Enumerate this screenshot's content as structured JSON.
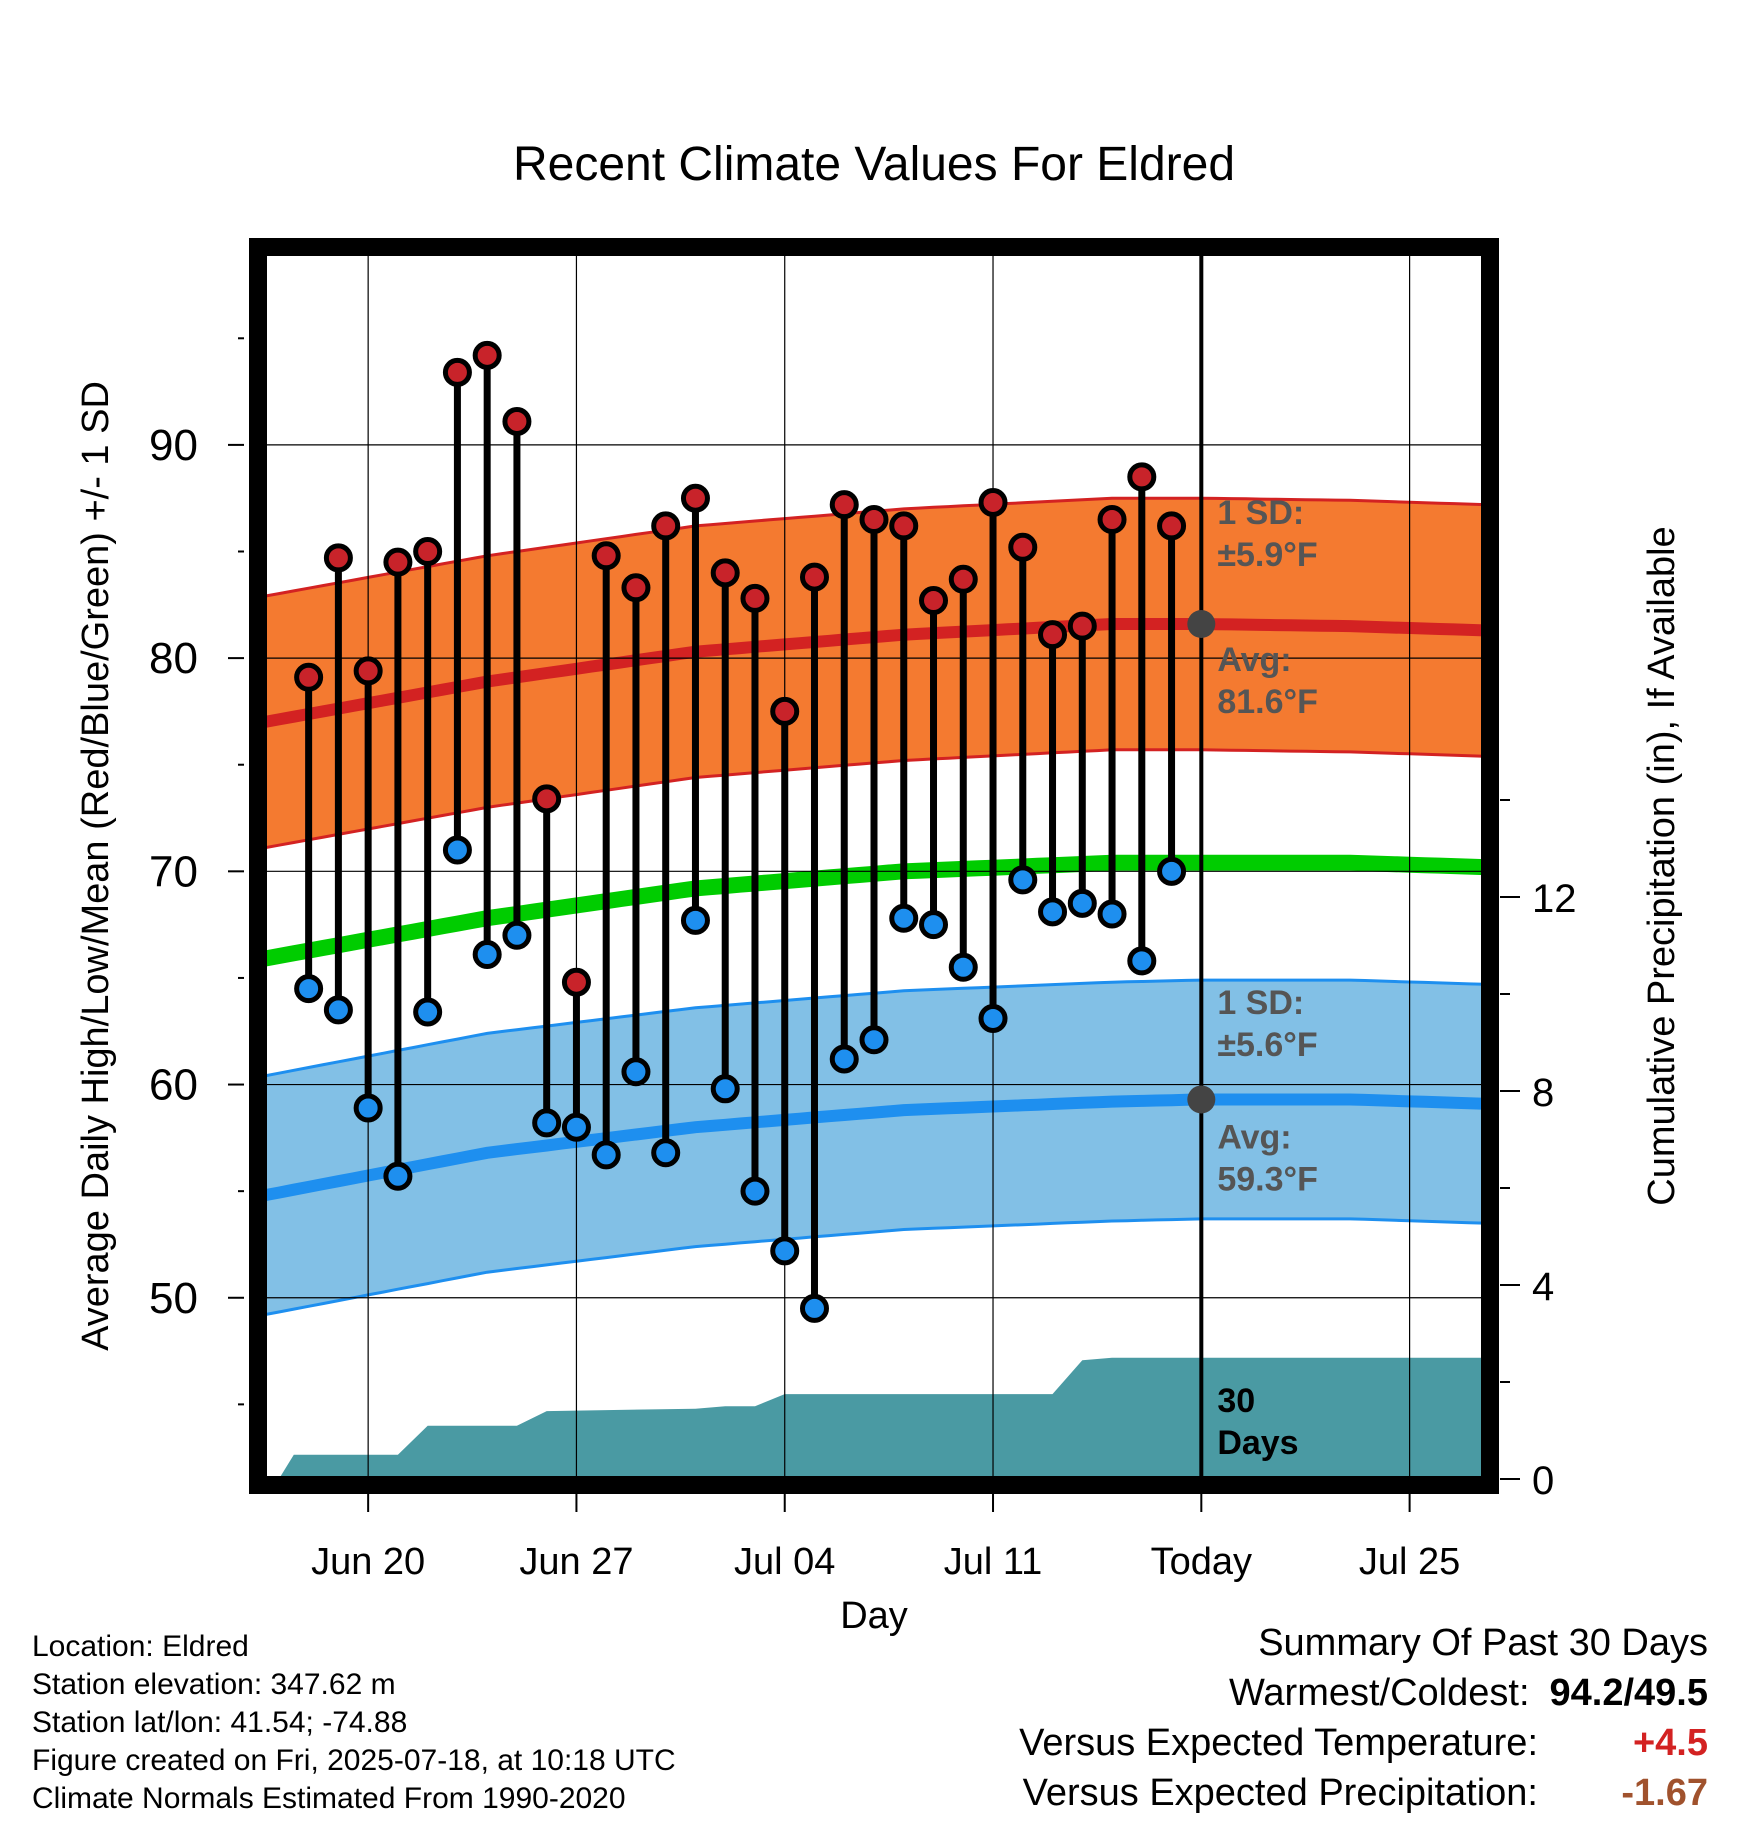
{
  "chart_data": {
    "type": "line",
    "title": "Recent Climate Values For Eldred",
    "xlabel": "Day",
    "ylabel": "Average Daily High/Low/Mean (Red/Blue/Green) +/- 1 SD",
    "y2label": "Cumulative Precipitation (in), If Available",
    "x_tick_labels": [
      "Jun 20",
      "Jun 27",
      "Jul 04",
      "Jul 11",
      "Today",
      "Jul 25"
    ],
    "x_tick_days": [
      -28,
      -21,
      -14,
      -7,
      0,
      7
    ],
    "x_range_days": [
      -31.5,
      9.5
    ],
    "ylim": [
      41.5,
      99
    ],
    "y_ticks": [
      50,
      60,
      70,
      80,
      90
    ],
    "y2_ticks": [
      0,
      4,
      8,
      12
    ],
    "grid": true,
    "days": [
      -30,
      -29,
      -28,
      -27,
      -26,
      -25,
      -24,
      -23,
      -22,
      -21,
      -20,
      -19,
      -18,
      -17,
      -16,
      -15,
      -14,
      -13,
      -12,
      -11,
      -10,
      -9,
      -8,
      -7,
      -6,
      -5,
      -4,
      -3,
      -2,
      -1
    ],
    "daily_high": [
      79.1,
      84.7,
      79.4,
      84.5,
      85.0,
      93.4,
      94.2,
      91.1,
      73.4,
      64.8,
      84.8,
      83.3,
      86.2,
      87.5,
      84.0,
      82.8,
      77.5,
      83.8,
      87.2,
      86.5,
      86.2,
      82.7,
      83.7,
      87.3,
      85.2,
      81.1,
      81.5,
      86.5,
      88.5,
      86.2
    ],
    "daily_low": [
      64.5,
      63.5,
      58.9,
      55.7,
      63.4,
      71.0,
      66.1,
      67.0,
      58.2,
      58.0,
      56.7,
      60.6,
      56.8,
      67.7,
      59.8,
      55.0,
      52.2,
      49.5,
      61.2,
      62.1,
      67.8,
      67.5,
      65.5,
      63.1,
      69.6,
      68.1,
      68.5,
      68.0,
      65.8,
      70.0
    ],
    "normal_high_avg": [
      {
        "day": -31.5,
        "value": 77.0
      },
      {
        "day": -24,
        "value": 78.9
      },
      {
        "day": -17,
        "value": 80.3
      },
      {
        "day": -10,
        "value": 81.1
      },
      {
        "day": -3,
        "value": 81.6
      },
      {
        "day": 0,
        "value": 81.6
      },
      {
        "day": 5,
        "value": 81.5
      },
      {
        "day": 9.5,
        "value": 81.3
      }
    ],
    "normal_high_sd": 5.9,
    "normal_low_avg": [
      {
        "day": -31.5,
        "value": 54.8
      },
      {
        "day": -24,
        "value": 56.8
      },
      {
        "day": -17,
        "value": 58.0
      },
      {
        "day": -10,
        "value": 58.8
      },
      {
        "day": -3,
        "value": 59.2
      },
      {
        "day": 0,
        "value": 59.3
      },
      {
        "day": 5,
        "value": 59.3
      },
      {
        "day": 9.5,
        "value": 59.1
      }
    ],
    "normal_low_sd": 5.6,
    "normal_mean": [
      {
        "day": -31.5,
        "value": 65.9
      },
      {
        "day": -24,
        "value": 67.8
      },
      {
        "day": -17,
        "value": 69.2
      },
      {
        "day": -10,
        "value": 70.0
      },
      {
        "day": -3,
        "value": 70.4
      },
      {
        "day": 0,
        "value": 70.4
      },
      {
        "day": 5,
        "value": 70.4
      },
      {
        "day": 9.5,
        "value": 70.2
      }
    ],
    "cumulative_precip": [
      {
        "day": -31,
        "value": 0.0
      },
      {
        "day": -30.5,
        "value": 0.5
      },
      {
        "day": -27,
        "value": 0.5
      },
      {
        "day": -26,
        "value": 1.1
      },
      {
        "day": -23,
        "value": 1.1
      },
      {
        "day": -22,
        "value": 1.4
      },
      {
        "day": -17,
        "value": 1.45
      },
      {
        "day": -16,
        "value": 1.5
      },
      {
        "day": -15,
        "value": 1.5
      },
      {
        "day": -14,
        "value": 1.75
      },
      {
        "day": -5,
        "value": 1.75
      },
      {
        "day": -4,
        "value": 2.45
      },
      {
        "day": -3,
        "value": 2.5
      },
      {
        "day": 9.5,
        "value": 2.5
      }
    ],
    "legend": "none",
    "annotations": {
      "high_sd": {
        "line1": "1 SD:",
        "line2": "±5.9°F"
      },
      "high_avg": {
        "line1": "Avg:",
        "line2": "81.6°F"
      },
      "low_sd": {
        "line1": "1 SD:",
        "line2": "±5.6°F"
      },
      "low_avg": {
        "line1": "Avg:",
        "line2": "59.3°F"
      },
      "precip": {
        "line1": "30",
        "line2": "Days"
      }
    },
    "colors": {
      "high_band": "#F47A30",
      "high_line": "#D32222",
      "high_band_edge": "#D32222",
      "low_band": "#82C0E6",
      "low_line": "#1E8FEF",
      "low_band_edge": "#1E8FEF",
      "mean_line": "#00CC00",
      "precip": "#4A9AA3",
      "high_marker": "#C8232A",
      "low_marker": "#1E8FEF",
      "annotation_text": "#555555",
      "avg_dot": "#444444"
    }
  },
  "info": {
    "location": "Location: Eldred",
    "elevation": "Station elevation: 347.62 m",
    "latlon": "Station lat/lon: 41.54; -74.88",
    "created": "Figure created on Fri, 2025-07-18, at 10:18 UTC",
    "normals": "Climate Normals Estimated From 1990-2020"
  },
  "summary": {
    "title": "Summary Of Past 30 Days",
    "warm_cold_label": "Warmest/Coldest:",
    "warm_cold_value": "94.2/49.5",
    "temp_label": "Versus Expected Temperature:",
    "temp_value": "+4.5",
    "temp_color": "#D32222",
    "precip_label": "Versus Expected Precipitation:",
    "precip_value": "-1.67",
    "precip_color": "#A0522D"
  }
}
